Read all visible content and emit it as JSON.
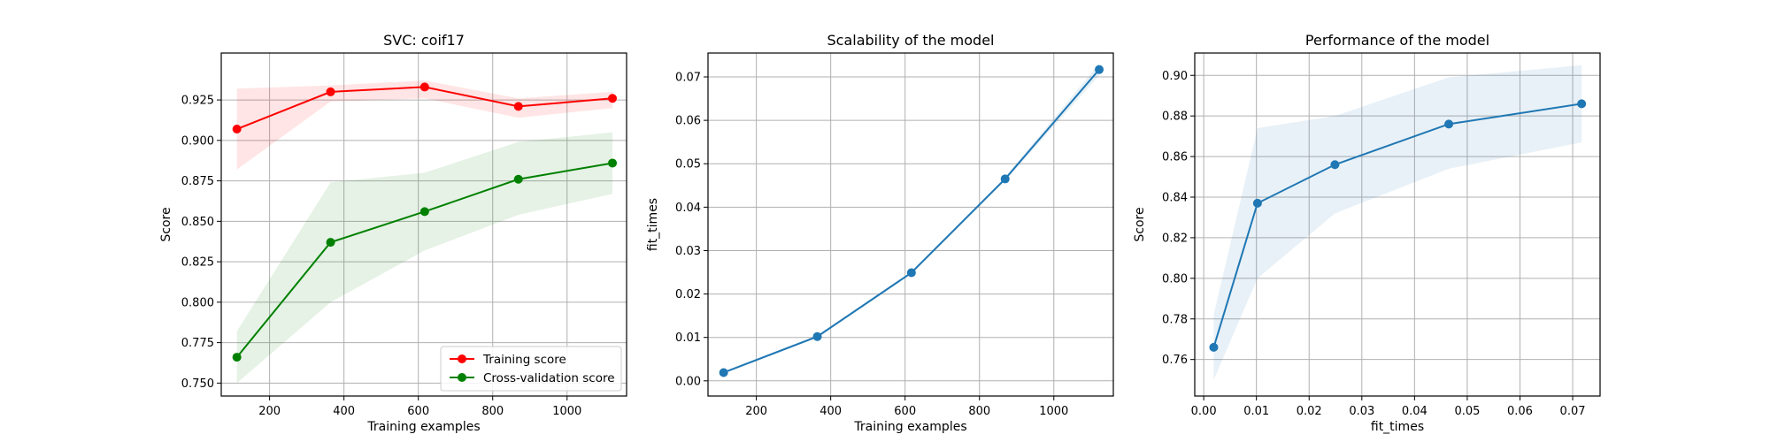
{
  "chart_data": [
    {
      "type": "line",
      "title": "SVC: coif17",
      "xlabel": "Training examples",
      "ylabel": "Score",
      "xlim": [
        70,
        1160
      ],
      "ylim": [
        0.742,
        0.954
      ],
      "xticks": [
        200,
        400,
        600,
        800,
        1000
      ],
      "yticks": [
        0.75,
        0.775,
        0.8,
        0.825,
        0.85,
        0.875,
        0.9,
        0.925
      ],
      "ytick_labels": [
        "0.750",
        "0.775",
        "0.800",
        "0.825",
        "0.850",
        "0.875",
        "0.900",
        "0.925"
      ],
      "grid": true,
      "legend_position": "bottom-right",
      "series": [
        {
          "name": "Training score",
          "color": "#ff0000",
          "band_color": "#ff0000",
          "x": [
            112,
            364,
            617,
            869,
            1122
          ],
          "values": [
            0.907,
            0.93,
            0.933,
            0.921,
            0.926
          ],
          "band_low": [
            0.882,
            0.924,
            0.926,
            0.914,
            0.92
          ],
          "band_high": [
            0.932,
            0.934,
            0.937,
            0.926,
            0.93
          ]
        },
        {
          "name": "Cross-validation score",
          "color": "#008000",
          "band_color": "#008000",
          "x": [
            112,
            364,
            617,
            869,
            1122
          ],
          "values": [
            0.766,
            0.837,
            0.856,
            0.876,
            0.886
          ],
          "band_low": [
            0.75,
            0.8,
            0.832,
            0.854,
            0.867
          ],
          "band_high": [
            0.782,
            0.874,
            0.88,
            0.899,
            0.905
          ]
        }
      ]
    },
    {
      "type": "line",
      "title": "Scalability of the model",
      "xlabel": "Training examples",
      "ylabel": "fit_times",
      "xlim": [
        70,
        1160
      ],
      "ylim": [
        -0.0035,
        0.0755
      ],
      "xticks": [
        200,
        400,
        600,
        800,
        1000
      ],
      "yticks": [
        0.0,
        0.01,
        0.02,
        0.03,
        0.04,
        0.05,
        0.06,
        0.07
      ],
      "ytick_labels": [
        "0.00",
        "0.01",
        "0.02",
        "0.03",
        "0.04",
        "0.05",
        "0.06",
        "0.07"
      ],
      "grid": true,
      "series": [
        {
          "color": "#1f77b4",
          "band_color": "#1f77b4",
          "x": [
            112,
            364,
            617,
            869,
            1122
          ],
          "values": [
            0.0019,
            0.0102,
            0.0249,
            0.0465,
            0.0717
          ],
          "band_low": [
            0.0017,
            0.0099,
            0.0246,
            0.0461,
            0.0703
          ],
          "band_high": [
            0.0021,
            0.0105,
            0.0252,
            0.0469,
            0.0731
          ]
        }
      ]
    },
    {
      "type": "line",
      "title": "Performance of the model",
      "xlabel": "fit_times",
      "ylabel": "Score",
      "xlim": [
        -0.0017,
        0.0752
      ],
      "ylim": [
        0.742,
        0.911
      ],
      "xticks": [
        0.0,
        0.01,
        0.02,
        0.03,
        0.04,
        0.05,
        0.06,
        0.07
      ],
      "xtick_labels": [
        "0.00",
        "0.01",
        "0.02",
        "0.03",
        "0.04",
        "0.05",
        "0.06",
        "0.07"
      ],
      "yticks": [
        0.76,
        0.78,
        0.8,
        0.82,
        0.84,
        0.86,
        0.88,
        0.9
      ],
      "ytick_labels": [
        "0.76",
        "0.78",
        "0.80",
        "0.82",
        "0.84",
        "0.86",
        "0.88",
        "0.90"
      ],
      "grid": true,
      "series": [
        {
          "color": "#1f77b4",
          "band_color": "#1f77b4",
          "x": [
            0.0019,
            0.0102,
            0.0249,
            0.0465,
            0.0717
          ],
          "values": [
            0.766,
            0.837,
            0.856,
            0.876,
            0.886
          ],
          "band_low": [
            0.75,
            0.8,
            0.832,
            0.854,
            0.867
          ],
          "band_high": [
            0.782,
            0.874,
            0.88,
            0.899,
            0.905
          ]
        }
      ]
    }
  ]
}
